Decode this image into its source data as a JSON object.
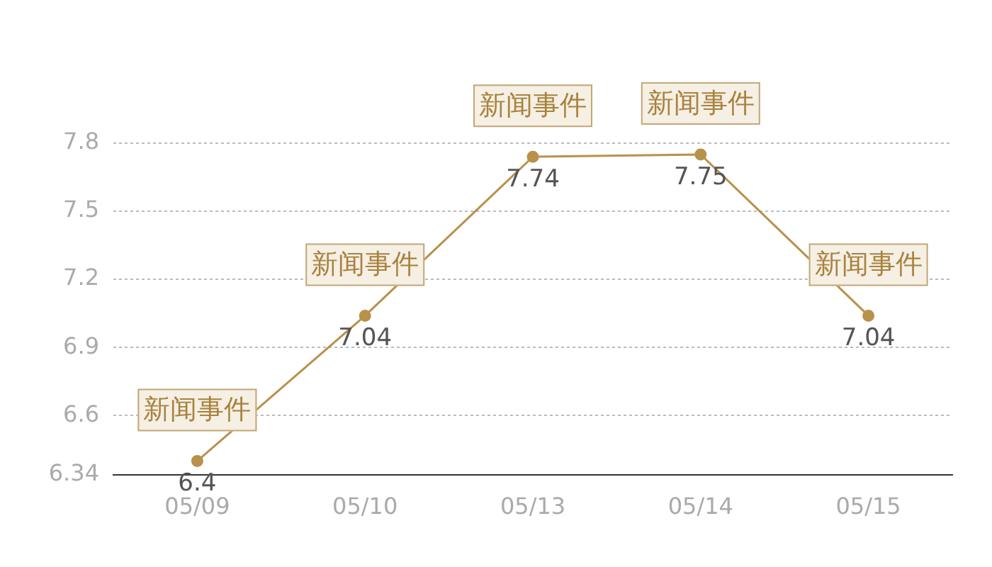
{
  "chart_data": {
    "type": "line",
    "categories": [
      "05/09",
      "05/10",
      "05/13",
      "05/14",
      "05/15"
    ],
    "series": [
      {
        "color": "#b8914b",
        "values": [
          6.4,
          7.04,
          7.74,
          7.75,
          7.04
        ]
      }
    ],
    "ylim": [
      6.34,
      7.8
    ],
    "yticks": [
      6.34,
      6.6,
      6.9,
      7.2,
      7.5,
      7.8
    ],
    "grid": "y",
    "marker": "circle",
    "line_style": "solid",
    "data_labels": true,
    "annotations": [
      {
        "text": "新闻事件",
        "x": "05/09",
        "y": 6.4
      },
      {
        "text": "新闻事件",
        "x": "05/10",
        "y": 7.04
      },
      {
        "text": "新闻事件",
        "x": "05/13",
        "y": 7.74
      },
      {
        "text": "新闻事件",
        "x": "05/14",
        "y": 7.75
      },
      {
        "text": "新闻事件",
        "x": "05/15",
        "y": 7.04
      }
    ]
  }
}
